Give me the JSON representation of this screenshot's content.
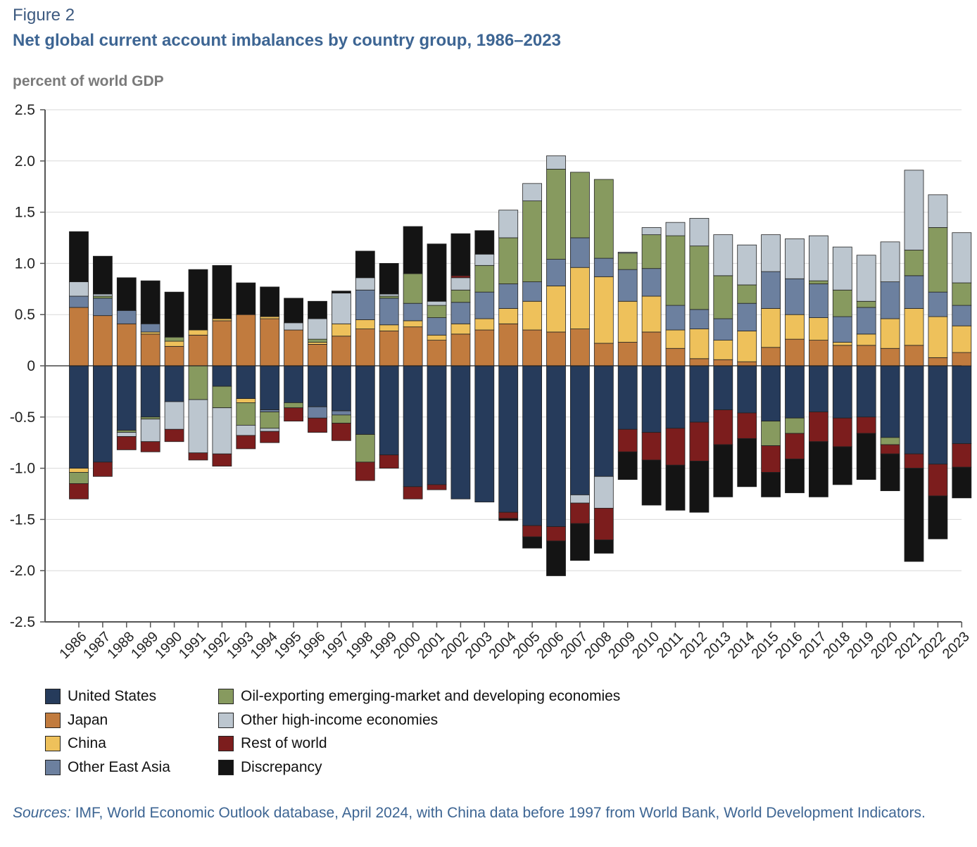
{
  "figure": {
    "label": "Figure 2",
    "title": "Net global current account imbalances by country group, 1986–2023",
    "unit_label": "percent of world GDP",
    "sources_prefix": "Sources:",
    "sources_text": " IMF, World Economic Outlook database, April 2024, with China data before 1997 from World Bank, World Development Indicators."
  },
  "chart_data": {
    "type": "bar",
    "stacked": true,
    "title": "Net global current account imbalances by country group, 1986–2023",
    "ylabel": "percent of world GDP",
    "ylim": [
      -2.5,
      2.5
    ],
    "yticks": [
      2.5,
      2.0,
      1.5,
      1.0,
      0.5,
      0,
      -0.5,
      -1.0,
      -1.5,
      -2.0,
      -2.5
    ],
    "ytick_labels": [
      "2.5",
      "2.0",
      "1.5",
      "1.0",
      "0.5",
      "0",
      "-0.5",
      "-1.0",
      "-1.5",
      "-2.0",
      "-2.5"
    ],
    "grid": true,
    "legend_position": "bottom",
    "categories": [
      "1986",
      "1987",
      "1988",
      "1989",
      "1990",
      "1991",
      "1992",
      "1993",
      "1994",
      "1995",
      "1996",
      "1997",
      "1998",
      "1999",
      "2000",
      "2001",
      "2002",
      "2003",
      "2004",
      "2005",
      "2006",
      "2007",
      "2008",
      "2009",
      "2010",
      "2011",
      "2012",
      "2013",
      "2014",
      "2015",
      "2016",
      "2017",
      "2018",
      "2019",
      "2020",
      "2021",
      "2022",
      "2023"
    ],
    "series": [
      {
        "name": "United States",
        "color": "#263b5b",
        "values": [
          -1.0,
          -0.94,
          -0.63,
          -0.5,
          -0.35,
          0,
          -0.2,
          -0.32,
          -0.43,
          -0.36,
          -0.4,
          -0.44,
          -0.67,
          -0.87,
          -1.18,
          -1.16,
          -1.3,
          -1.33,
          -1.43,
          -1.56,
          -1.57,
          -1.26,
          -1.08,
          -0.62,
          -0.65,
          -0.61,
          -0.55,
          -0.43,
          -0.46,
          -0.54,
          -0.51,
          -0.45,
          -0.51,
          -0.5,
          -0.7,
          -0.86,
          -0.96,
          -0.76
        ]
      },
      {
        "name": "Japan",
        "color": "#c17b3e",
        "values": [
          0.57,
          0.49,
          0.41,
          0.31,
          0.19,
          0.3,
          0.44,
          0.5,
          0.46,
          0.35,
          0.21,
          0.29,
          0.36,
          0.34,
          0.38,
          0.25,
          0.31,
          0.35,
          0.41,
          0.35,
          0.33,
          0.36,
          0.22,
          0.23,
          0.33,
          0.17,
          0.07,
          0.06,
          0.04,
          0.18,
          0.26,
          0.25,
          0.2,
          0.2,
          0.17,
          0.2,
          0.08,
          0.13
        ]
      },
      {
        "name": "China",
        "color": "#eec15b",
        "values": [
          -0.04,
          0,
          0,
          0.02,
          0.05,
          0.05,
          0.02,
          -0.04,
          0.02,
          0,
          0.02,
          0.12,
          0.09,
          0.06,
          0.06,
          0.05,
          0.1,
          0.11,
          0.15,
          0.28,
          0.45,
          0.6,
          0.65,
          0.4,
          0.35,
          0.18,
          0.29,
          0.19,
          0.3,
          0.38,
          0.24,
          0.22,
          0.03,
          0.11,
          0.29,
          0.36,
          0.4,
          0.26
        ]
      },
      {
        "name": "Other East Asia",
        "color": "#6c809f",
        "values": [
          0.11,
          0.17,
          0.13,
          0.08,
          0,
          0,
          0,
          0,
          -0.02,
          0,
          -0.11,
          -0.04,
          0.29,
          0.26,
          0.17,
          0.17,
          0.21,
          0.26,
          0.24,
          0.19,
          0.26,
          0.29,
          0.18,
          0.31,
          0.27,
          0.24,
          0.19,
          0.21,
          0.27,
          0.36,
          0.35,
          0.33,
          0.25,
          0.26,
          0.36,
          0.32,
          0.24,
          0.2
        ]
      },
      {
        "name": "Oil-exporting emerging-market and developing economies",
        "color": "#879a5f",
        "values": [
          -0.11,
          0.02,
          -0.02,
          -0.02,
          0.04,
          -0.33,
          -0.21,
          -0.22,
          -0.16,
          -0.05,
          0.03,
          -0.08,
          -0.27,
          0.02,
          0.29,
          0.12,
          0.12,
          0.26,
          0.45,
          0.79,
          0.88,
          0.64,
          0.77,
          0.16,
          0.33,
          0.68,
          0.62,
          0.42,
          0.18,
          -0.24,
          -0.15,
          0.03,
          0.26,
          0.06,
          -0.07,
          0.25,
          0.63,
          0.22
        ]
      },
      {
        "name": "Other high-income economies",
        "color": "#bcc6cf",
        "values": [
          0.14,
          0.02,
          -0.04,
          -0.22,
          -0.27,
          -0.52,
          -0.45,
          -0.1,
          -0.03,
          0.07,
          0.2,
          0.3,
          0.12,
          0.02,
          0,
          0.04,
          0.12,
          0.11,
          0.27,
          0.17,
          0.13,
          -0.08,
          -0.31,
          0.01,
          0.07,
          0.13,
          0.27,
          0.4,
          0.39,
          0.36,
          0.39,
          0.44,
          0.42,
          0.45,
          0.39,
          0.78,
          0.32,
          0.49
        ]
      },
      {
        "name": "Rest of world",
        "color": "#7c1d1d",
        "values": [
          -0.15,
          -0.14,
          -0.13,
          -0.1,
          -0.12,
          -0.07,
          -0.12,
          -0.13,
          -0.11,
          -0.13,
          -0.14,
          -0.17,
          -0.18,
          -0.13,
          -0.12,
          -0.05,
          0.02,
          0,
          -0.06,
          -0.11,
          -0.14,
          -0.2,
          -0.31,
          -0.22,
          -0.27,
          -0.36,
          -0.38,
          -0.34,
          -0.25,
          -0.26,
          -0.25,
          -0.29,
          -0.28,
          -0.16,
          -0.09,
          -0.14,
          -0.31,
          -0.23
        ]
      },
      {
        "name": "Discrepancy",
        "color": "#141414",
        "values": [
          0.49,
          0.37,
          0.32,
          0.42,
          0.44,
          0.59,
          0.52,
          0.31,
          0.29,
          0.24,
          0.17,
          0.02,
          0.26,
          0.3,
          0.46,
          0.56,
          0.41,
          0.23,
          -0.02,
          -0.11,
          -0.34,
          -0.36,
          -0.13,
          -0.27,
          -0.44,
          -0.44,
          -0.5,
          -0.51,
          -0.47,
          -0.24,
          -0.33,
          -0.54,
          -0.37,
          -0.45,
          -0.36,
          -0.91,
          -0.42,
          -0.3
        ]
      }
    ]
  }
}
